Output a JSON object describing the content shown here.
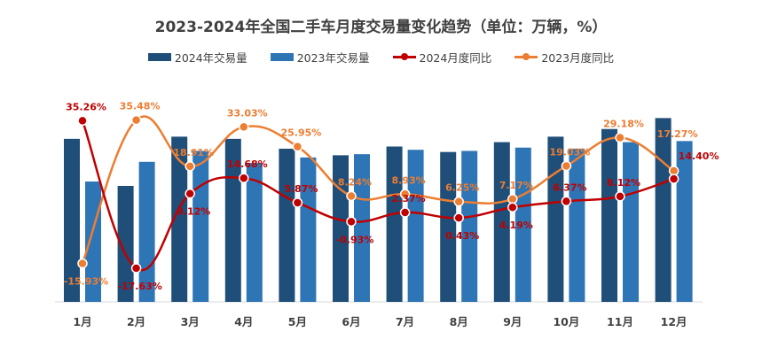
{
  "title": "2023-2024年全国二手车月度交易量变化趋势（单位：万辆，%）",
  "chart_data": {
    "type": "bar+line",
    "title": "2023-2024年全国二手车月度交易量变化趋势（单位：万辆，%）",
    "categories": [
      "1月",
      "2月",
      "3月",
      "4月",
      "5月",
      "6月",
      "7月",
      "8月",
      "9月",
      "10月",
      "11月",
      "12月"
    ],
    "bar_ylim": [
      0,
      195
    ],
    "line_ylim": [
      -29.7,
      46.8
    ],
    "grid": false,
    "legend": "top",
    "series": [
      {
        "name": "2024年交易量",
        "type": "bar",
        "color": "#1f4e79",
        "values": [
          149,
          106,
          151,
          149,
          140,
          134,
          142,
          137,
          146,
          151,
          158,
          168
        ]
      },
      {
        "name": "2023年交易量",
        "type": "bar",
        "color": "#2e75b6",
        "values": [
          110,
          128,
          138,
          127,
          132,
          135,
          139,
          138,
          141,
          140,
          146,
          147
        ]
      },
      {
        "name": "2024月度同比",
        "type": "line",
        "color": "#c00000",
        "values": [
          35.26,
          -17.63,
          9.12,
          14.68,
          5.87,
          -0.93,
          2.37,
          0.43,
          4.19,
          6.37,
          8.12,
          14.4
        ],
        "labels": [
          "35.26%",
          "-17.63%",
          "9.12%",
          "14.68%",
          "5.87%",
          "-0.93%",
          "2.37%",
          "0.43%",
          "4.19%",
          "6.37%",
          "8.12%",
          "14.40%"
        ]
      },
      {
        "name": "2023月度同比",
        "type": "line",
        "color": "#ed7d31",
        "values": [
          -15.93,
          35.48,
          18.91,
          33.03,
          25.95,
          8.24,
          8.93,
          6.25,
          7.17,
          19.03,
          29.18,
          17.27
        ],
        "labels": [
          "-15.93%",
          "35.48%",
          "18.91%",
          "33.03%",
          "25.95%",
          "8.24%",
          "8.93%",
          "6.25%",
          "7.17%",
          "19.03%",
          "29.18%",
          "17.27%"
        ]
      }
    ]
  }
}
